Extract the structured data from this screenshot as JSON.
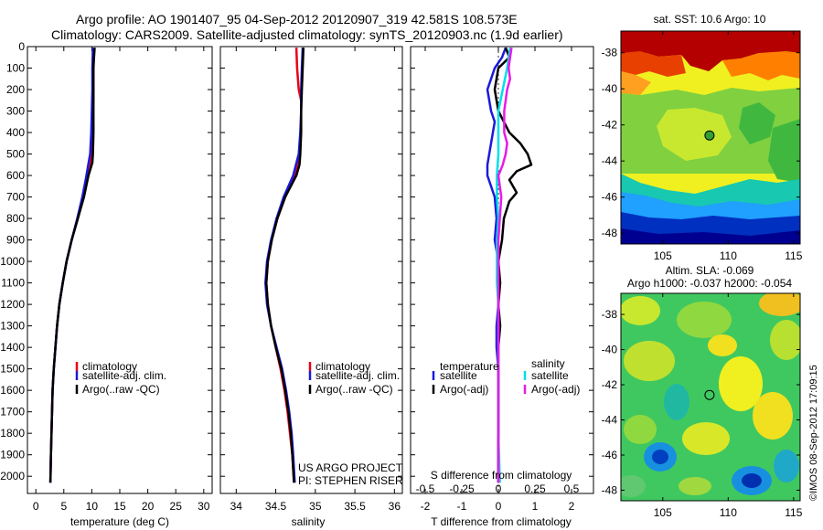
{
  "header": {
    "line1": "Argo profile: AO 1901407_95 04-Sep-2012 20120907_319 42.581S 108.573E",
    "line2": "Climatology: CARS2009. Satellite-adjusted climatology: synTS_20120903.nc (1.9d earlier)"
  },
  "footer": {
    "project": "US ARGO PROJECT",
    "pi": "PI: STEPHEN RISER",
    "watermark": "©IMOS 08-Sep-2012 17:09:15"
  },
  "colors": {
    "climatology": "#e8001a",
    "satellite": "#1a1adc",
    "argo": "#000000",
    "salinity_satellite": "#00e0e8",
    "salinity_argo": "#e81ae8"
  },
  "chart_data": [
    {
      "type": "line",
      "name": "temperature-profile",
      "xlabel": "temperature (deg C)",
      "ylabel": "",
      "xlim": [
        -1.5,
        31.5
      ],
      "ylim": [
        2080,
        0
      ],
      "xticks": [
        0,
        5,
        10,
        15,
        20,
        25,
        30
      ],
      "yticks": [
        0,
        100,
        200,
        300,
        400,
        500,
        600,
        700,
        800,
        900,
        1000,
        1100,
        1200,
        1300,
        1400,
        1500,
        1600,
        1700,
        1800,
        1900,
        2000
      ],
      "legend": [
        "climatology",
        "satellite-adj. clim.",
        "Argo(..raw -QC)"
      ],
      "legend_position": "lower-right",
      "series": [
        {
          "name": "climatology",
          "color": "#e8001a",
          "depth": [
            5,
            100,
            200,
            300,
            400,
            500,
            560,
            620,
            700,
            800,
            900,
            1000,
            1100,
            1200,
            1300,
            1400,
            1500,
            1600,
            1700,
            1800,
            1900,
            2030
          ],
          "values": [
            10.3,
            10.3,
            10.3,
            10.2,
            10.1,
            10.0,
            9.7,
            9.2,
            8.5,
            7.5,
            6.4,
            5.5,
            4.8,
            4.2,
            3.8,
            3.5,
            3.2,
            3.0,
            2.9,
            2.8,
            2.7,
            2.6
          ]
        },
        {
          "name": "satellite-adj. clim.",
          "color": "#1a1adc",
          "depth": [
            5,
            100,
            200,
            300,
            400,
            500,
            560,
            620,
            700,
            800,
            900,
            1000,
            1100,
            1200,
            1300,
            1400,
            1500,
            1600,
            1700,
            1800,
            1900,
            2030
          ],
          "values": [
            10.2,
            10.1,
            10.1,
            10.0,
            9.9,
            9.7,
            9.3,
            8.9,
            8.3,
            7.4,
            6.4,
            5.5,
            4.8,
            4.2,
            3.8,
            3.5,
            3.2,
            3.0,
            2.9,
            2.8,
            2.7,
            2.6
          ]
        },
        {
          "name": "Argo(..raw -QC)",
          "color": "#000000",
          "depth": [
            5,
            50,
            100,
            200,
            300,
            400,
            500,
            540,
            600,
            700,
            800,
            900,
            1000,
            1100,
            1200,
            1300,
            1400,
            1500,
            1600,
            1700,
            1800,
            1900,
            2030
          ],
          "values": [
            10.5,
            10.4,
            10.3,
            10.3,
            10.3,
            10.3,
            10.2,
            10.1,
            9.4,
            8.6,
            7.5,
            6.4,
            5.5,
            4.8,
            4.2,
            3.8,
            3.5,
            3.2,
            3.0,
            2.9,
            2.8,
            2.7,
            2.6
          ]
        }
      ]
    },
    {
      "type": "line",
      "name": "salinity-profile",
      "xlabel": "salinity",
      "ylabel": "",
      "xlim": [
        33.8,
        36.1
      ],
      "ylim": [
        2080,
        0
      ],
      "xticks": [
        34,
        34.5,
        35,
        35.5,
        36
      ],
      "xticklabels": [
        "34",
        "34.5",
        "35",
        "35.5",
        "36"
      ],
      "legend": [
        "climatology",
        "satellite-adj. clim.",
        "Argo(..raw -QC)"
      ],
      "legend_position": "lower-right",
      "series": [
        {
          "name": "climatology",
          "color": "#e8001a",
          "depth": [
            5,
            100,
            200,
            250,
            300,
            400,
            500,
            600,
            700,
            800,
            900,
            1000,
            1100,
            1200,
            1300,
            1400,
            1500,
            1600,
            1700,
            1800,
            1900,
            2030
          ],
          "values": [
            34.76,
            34.77,
            34.79,
            34.82,
            34.82,
            34.82,
            34.8,
            34.74,
            34.62,
            34.52,
            34.45,
            34.4,
            34.38,
            34.4,
            34.44,
            34.5,
            34.56,
            34.61,
            34.65,
            34.68,
            34.71,
            34.73
          ]
        },
        {
          "name": "satellite-adj. clim.",
          "color": "#1a1adc",
          "depth": [
            5,
            100,
            200,
            300,
            400,
            500,
            600,
            700,
            800,
            900,
            1000,
            1100,
            1200,
            1300,
            1400,
            1500,
            1600,
            1700,
            1800,
            1900,
            2030
          ],
          "values": [
            34.84,
            34.83,
            34.82,
            34.82,
            34.81,
            34.79,
            34.72,
            34.6,
            34.51,
            34.44,
            34.39,
            34.37,
            34.39,
            34.44,
            34.51,
            34.58,
            34.63,
            34.67,
            34.7,
            34.72,
            34.74
          ]
        },
        {
          "name": "Argo(..raw -QC)",
          "color": "#000000",
          "depth": [
            5,
            100,
            200,
            300,
            400,
            500,
            550,
            600,
            700,
            800,
            900,
            1000,
            1100,
            1200,
            1300,
            1400,
            1500,
            1600,
            1700,
            1800,
            1900,
            2030
          ],
          "values": [
            34.85,
            34.84,
            34.83,
            34.82,
            34.82,
            34.81,
            34.8,
            34.76,
            34.62,
            34.52,
            34.45,
            34.4,
            34.38,
            34.4,
            34.44,
            34.5,
            34.57,
            34.62,
            34.66,
            34.69,
            34.71,
            34.73
          ]
        }
      ]
    },
    {
      "type": "line",
      "name": "difference-profile",
      "xlabel": "T difference from climatology",
      "x2label": "S difference from climatology",
      "ylabel": "",
      "xlim": [
        -2.4,
        2.6
      ],
      "ylim": [
        2080,
        0
      ],
      "xticks": [
        -2,
        -1,
        0,
        1,
        2
      ],
      "x2ticks": [
        -0.5,
        -0.25,
        0,
        0.25,
        0.5
      ],
      "x2ticklabels": [
        "-0.5",
        "-0.25",
        "0",
        "0.25",
        "0.5"
      ],
      "x2_to_x_scale": 4,
      "legend_groups": [
        {
          "title": "temperature",
          "entries": [
            "satellite",
            "Argo(-adj)"
          ]
        },
        {
          "title": "salinity",
          "entries": [
            "satellite",
            "Argo(-adj)"
          ]
        }
      ],
      "series": [
        {
          "name": "temperature satellite",
          "color": "#1a1adc",
          "depth": [
            5,
            50,
            100,
            150,
            200,
            300,
            350,
            450,
            550,
            600,
            650,
            700,
            800,
            900,
            1000,
            1100,
            1200,
            1300,
            1400,
            1500,
            1700,
            1900,
            2030
          ],
          "values": [
            0.2,
            0.1,
            -0.1,
            -0.2,
            -0.3,
            -0.2,
            -0.1,
            -0.2,
            -0.3,
            -0.3,
            -0.2,
            -0.1,
            -0.05,
            -0.1,
            0.0,
            0.0,
            0.0,
            -0.05,
            -0.05,
            0.0,
            0.0,
            0.0,
            0.0
          ]
        },
        {
          "name": "temperature Argo(-adj)",
          "color": "#000000",
          "depth": [
            5,
            50,
            100,
            200,
            300,
            400,
            450,
            500,
            550,
            580,
            620,
            680,
            720,
            800,
            900,
            1000,
            1100,
            1200,
            1300,
            1400,
            1500,
            1700,
            1900,
            2030
          ],
          "values": [
            0.2,
            0.3,
            0.0,
            -0.1,
            0.0,
            0.3,
            0.6,
            0.8,
            0.9,
            0.5,
            0.3,
            0.5,
            0.3,
            0.15,
            0.1,
            0.0,
            0.05,
            0.0,
            0.05,
            0.0,
            0.0,
            0.0,
            0.0,
            0.0
          ]
        },
        {
          "name": "salinity satellite",
          "color": "#00e0e8",
          "depth": [
            5,
            100,
            200,
            300,
            400,
            500,
            600,
            700,
            800,
            900,
            1000,
            1100,
            1200,
            1400,
            1600,
            1800,
            2030
          ],
          "values": [
            0.08,
            0.06,
            0.03,
            0.0,
            0.0,
            0.0,
            -0.01,
            -0.01,
            0.0,
            -0.01,
            -0.01,
            -0.01,
            0.0,
            0.0,
            0.0,
            0.0,
            0.01
          ]
        },
        {
          "name": "salinity Argo(-adj)",
          "color": "#e81ae8",
          "depth": [
            5,
            50,
            100,
            150,
            200,
            300,
            400,
            450,
            500,
            550,
            600,
            700,
            800,
            900,
            1000,
            1100,
            1200,
            1400,
            1600,
            1800,
            2030
          ],
          "values": [
            0.09,
            0.08,
            0.07,
            0.08,
            0.06,
            0.04,
            0.04,
            0.06,
            0.05,
            0.03,
            0.0,
            0.02,
            0.01,
            0.0,
            0.0,
            0.0,
            0.0,
            0.0,
            0.0,
            0.0,
            0.0
          ]
        }
      ]
    },
    {
      "type": "heatmap",
      "name": "sst-map",
      "title": "sat. SST: 10.6  Argo: 10",
      "xlim": [
        101.8,
        115.5
      ],
      "ylim": [
        -48.6,
        -36.8
      ],
      "xticks": [
        105,
        110,
        115
      ],
      "yticks": [
        -38,
        -40,
        -42,
        -44,
        -46,
        -48
      ],
      "marker": {
        "lon": 108.573,
        "lat": -42.581
      }
    },
    {
      "type": "heatmap",
      "name": "sla-map",
      "title": "Altim. SLA: -0.069",
      "subtitle": "Argo h1000: -0.037 h2000: -0.054",
      "xlim": [
        101.8,
        115.5
      ],
      "ylim": [
        -48.6,
        -36.8
      ],
      "xticks": [
        105,
        110,
        115
      ],
      "yticks": [
        -38,
        -40,
        -42,
        -44,
        -46,
        -48
      ],
      "marker": {
        "lon": 108.573,
        "lat": -42.581
      }
    }
  ]
}
